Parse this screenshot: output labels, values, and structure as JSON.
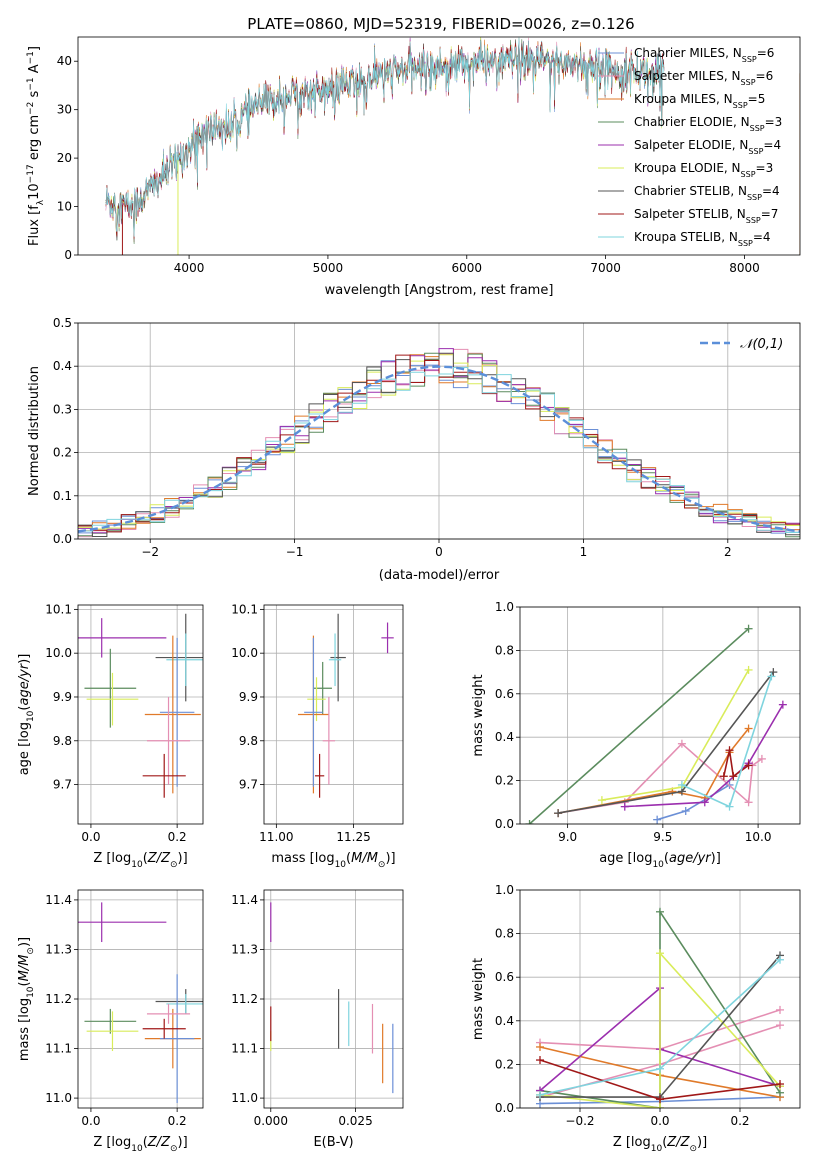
{
  "title": "PLATE=0860, MJD=52319, FIBERID=0026, z=0.126",
  "colors": {
    "Chabrier MILES": "#6b8fd6",
    "Salpeter MILES": "#e48fb3",
    "Kroupa MILES": "#e07a2a",
    "Chabrier ELODIE": "#5b8c5e",
    "Salpeter ELODIE": "#9b2fae",
    "Kroupa ELODIE": "#d9ec5a",
    "Chabrier STELIB": "#555555",
    "Salpeter STELIB": "#a01818",
    "Kroupa STELIB": "#7fd4de",
    "gaussian": "#5b8fd9",
    "grid": "#b0b0b0"
  },
  "chart_data": [
    {
      "id": "spectrum",
      "type": "line",
      "xlabel": "wavelength [Angstrom, rest frame]",
      "ylabel": "Flux [f_λ10^-17 erg cm^-2 s^-1 A^-1]",
      "xlim": [
        3200,
        8400
      ],
      "ylim": [
        0,
        45
      ],
      "xticks": [
        4000,
        5000,
        6000,
        7000,
        8000
      ],
      "yticks": [
        0,
        10,
        20,
        30,
        40
      ],
      "grid": false,
      "legend_position": "top-right",
      "legend": [
        {
          "model": "Chabrier MILES",
          "label": "Chabrier MILES, N",
          "sub": "SSP",
          "tail": "=6"
        },
        {
          "model": "Salpeter MILES",
          "label": "Salpeter MILES, N",
          "sub": "SSP",
          "tail": "=6"
        },
        {
          "model": "Kroupa MILES",
          "label": "Kroupa MILES, N",
          "sub": "SSP",
          "tail": "=5"
        },
        {
          "model": "Chabrier ELODIE",
          "label": "Chabrier ELODIE, N",
          "sub": "SSP",
          "tail": "=3"
        },
        {
          "model": "Salpeter ELODIE",
          "label": "Salpeter ELODIE, N",
          "sub": "SSP",
          "tail": "=4"
        },
        {
          "model": "Kroupa ELODIE",
          "label": "Kroupa ELODIE, N",
          "sub": "SSP",
          "tail": "=3"
        },
        {
          "model": "Chabrier STELIB",
          "label": "Chabrier STELIB, N",
          "sub": "SSP",
          "tail": "=4"
        },
        {
          "model": "Salpeter STELIB",
          "label": "Salpeter STELIB, N",
          "sub": "SSP",
          "tail": "=7"
        },
        {
          "model": "Kroupa STELIB",
          "label": "Kroupa STELIB, N",
          "sub": "SSP",
          "tail": "=4"
        }
      ],
      "continuum": [
        [
          3400,
          11
        ],
        [
          3500,
          10.5
        ],
        [
          3600,
          10
        ],
        [
          3700,
          13
        ],
        [
          3800,
          16
        ],
        [
          3900,
          19
        ],
        [
          4000,
          22
        ],
        [
          4100,
          25
        ],
        [
          4200,
          26.5
        ],
        [
          4300,
          26
        ],
        [
          4400,
          29
        ],
        [
          4500,
          31
        ],
        [
          4600,
          32
        ],
        [
          4700,
          33
        ],
        [
          4800,
          33.5
        ],
        [
          4900,
          33.5
        ],
        [
          5000,
          34
        ],
        [
          5100,
          35
        ],
        [
          5200,
          35.5
        ],
        [
          5300,
          36.5
        ],
        [
          5400,
          37.5
        ],
        [
          5600,
          38.5
        ],
        [
          5800,
          39
        ],
        [
          6000,
          39.5
        ],
        [
          6200,
          40
        ],
        [
          6400,
          40
        ],
        [
          6600,
          40
        ],
        [
          6800,
          39.5
        ],
        [
          7000,
          38.5
        ],
        [
          7200,
          38
        ],
        [
          7400,
          37.5
        ]
      ],
      "range": [
        3400,
        7420
      ],
      "cutoffs": [
        {
          "model": "Salpeter STELIB",
          "x0": 3200,
          "x1": 3520
        },
        {
          "model": "Kroupa ELODIE",
          "x0": 3200,
          "x1": 3920
        },
        {
          "model": "Kroupa ELODIE",
          "x0": 6800,
          "x1": 8400
        },
        {
          "model": "Kroupa MILES",
          "x0": 7410,
          "x1": 8400
        }
      ]
    },
    {
      "id": "residuals",
      "type": "histogram",
      "xlabel": "(data-model)/error",
      "ylabel": "Normed distribution",
      "xlim": [
        -2.5,
        2.5
      ],
      "ylim": [
        0,
        0.5
      ],
      "xticks": [
        -2,
        -1,
        0,
        1,
        2
      ],
      "yticks": [
        0.0,
        0.1,
        0.2,
        0.3,
        0.4,
        0.5
      ],
      "grid": true,
      "legend_position": "top-right",
      "gaussian_label": "𝒩(0,1)",
      "bins": 50,
      "jitter": 0.045
    },
    {
      "id": "age_vs_Z",
      "type": "errorbar",
      "xlabel": "Z [log10(Z/Z⊙)]",
      "ylabel": "age [log10(age/yr)]",
      "xlim": [
        -0.03,
        0.26
      ],
      "ylim": [
        9.61,
        10.11
      ],
      "xticks": [
        0.0,
        0.2
      ],
      "yticks": [
        9.7,
        9.8,
        9.9,
        10.0,
        10.1
      ],
      "grid": true,
      "points": [
        {
          "model": "Salpeter ELODIE",
          "x": 0.025,
          "y": 10.035,
          "xerr": 0.15,
          "yerr": 0.045
        },
        {
          "model": "Chabrier STELIB",
          "x": 0.22,
          "y": 9.99,
          "xerr": 0.07,
          "yerr": 0.1
        },
        {
          "model": "Kroupa STELIB",
          "x": 0.22,
          "y": 9.985,
          "xerr": 0.045,
          "yerr": 0.06
        },
        {
          "model": "Chabrier ELODIE",
          "x": 0.045,
          "y": 9.92,
          "xerr": 0.06,
          "yerr": 0.09
        },
        {
          "model": "Kroupa ELODIE",
          "x": 0.05,
          "y": 9.895,
          "xerr": 0.06,
          "yerr": 0.06
        },
        {
          "model": "Kroupa MILES",
          "x": 0.19,
          "y": 9.86,
          "xerr": 0.065,
          "yerr": 0.18
        },
        {
          "model": "Chabrier MILES",
          "x": 0.2,
          "y": 9.865,
          "xerr": 0.04,
          "yerr": 0.17
        },
        {
          "model": "Salpeter MILES",
          "x": 0.18,
          "y": 9.8,
          "xerr": 0.05,
          "yerr": 0.1
        },
        {
          "model": "Salpeter STELIB",
          "x": 0.17,
          "y": 9.72,
          "xerr": 0.05,
          "yerr": 0.05
        }
      ]
    },
    {
      "id": "age_vs_mass",
      "type": "errorbar",
      "xlabel": "mass [log10(M/M⊙)]",
      "ylabel": "",
      "xlim": [
        10.96,
        11.41
      ],
      "ylim": [
        9.61,
        10.11
      ],
      "xticks": [
        11.0,
        11.25
      ],
      "yticks": [
        9.7,
        9.8,
        9.9,
        10.0,
        10.1
      ],
      "grid": true,
      "points": [
        {
          "model": "Salpeter ELODIE",
          "x": 11.36,
          "y": 10.035,
          "xerr": 0.02,
          "yerr": 0.035
        },
        {
          "model": "Chabrier STELIB",
          "x": 11.2,
          "y": 9.99,
          "xerr": 0.025,
          "yerr": 0.1
        },
        {
          "model": "Kroupa STELIB",
          "x": 11.19,
          "y": 9.985,
          "xerr": 0.02,
          "yerr": 0.06
        },
        {
          "model": "Chabrier ELODIE",
          "x": 11.15,
          "y": 9.92,
          "xerr": 0.03,
          "yerr": 0.06
        },
        {
          "model": "Kroupa ELODIE",
          "x": 11.13,
          "y": 9.895,
          "xerr": 0.03,
          "yerr": 0.05
        },
        {
          "model": "Kroupa MILES",
          "x": 11.12,
          "y": 9.86,
          "xerr": 0.05,
          "yerr": 0.18
        },
        {
          "model": "Chabrier MILES",
          "x": 11.12,
          "y": 9.865,
          "xerr": 0.03,
          "yerr": 0.17
        },
        {
          "model": "Salpeter MILES",
          "x": 11.17,
          "y": 9.8,
          "xerr": 0.02,
          "yerr": 0.1
        },
        {
          "model": "Salpeter STELIB",
          "x": 11.14,
          "y": 9.72,
          "xerr": 0.015,
          "yerr": 0.05
        }
      ]
    },
    {
      "id": "weight_vs_age",
      "type": "line",
      "xlabel": "age [log10(age/yr)]",
      "ylabel": "mass weight",
      "xlim": [
        8.75,
        10.22
      ],
      "ylim": [
        0,
        1.0
      ],
      "xticks": [
        9.0,
        9.5,
        10.0
      ],
      "yticks": [
        0.0,
        0.2,
        0.4,
        0.6,
        0.8,
        1.0
      ],
      "grid": true,
      "series": [
        {
          "model": "Chabrier MILES",
          "x": [
            9.47,
            9.62,
            9.85
          ],
          "y": [
            0.02,
            0.06,
            0.18
          ]
        },
        {
          "model": "Salpeter MILES",
          "x": [
            8.95,
            9.3,
            9.6,
            9.95,
            9.97,
            10.02
          ],
          "y": [
            0.05,
            0.1,
            0.37,
            0.1,
            0.27,
            0.3
          ]
        },
        {
          "model": "Kroupa MILES",
          "x": [
            8.95,
            9.55,
            9.72,
            9.85,
            9.95
          ],
          "y": [
            0.05,
            0.15,
            0.12,
            0.33,
            0.44
          ]
        },
        {
          "model": "Chabrier ELODIE",
          "x": [
            8.8,
            9.95
          ],
          "y": [
            0.0,
            0.9
          ]
        },
        {
          "model": "Salpeter ELODIE",
          "x": [
            9.3,
            9.72,
            9.95,
            10.13
          ],
          "y": [
            0.08,
            0.1,
            0.28,
            0.55
          ]
        },
        {
          "model": "Kroupa ELODIE",
          "x": [
            9.18,
            9.6,
            9.95
          ],
          "y": [
            0.11,
            0.17,
            0.71
          ]
        },
        {
          "model": "Chabrier STELIB",
          "x": [
            8.95,
            9.6,
            10.08
          ],
          "y": [
            0.05,
            0.15,
            0.7
          ]
        },
        {
          "model": "Salpeter STELIB",
          "x": [
            9.82,
            9.85,
            9.87,
            9.95
          ],
          "y": [
            0.22,
            0.34,
            0.22,
            0.27
          ]
        },
        {
          "model": "Kroupa STELIB",
          "x": [
            9.6,
            9.85,
            10.07
          ],
          "y": [
            0.18,
            0.08,
            0.68
          ]
        }
      ]
    },
    {
      "id": "mass_vs_Z",
      "type": "errorbar",
      "xlabel": "Z [log10(Z/Z⊙)]",
      "ylabel": "mass [log10(M/M⊙)]",
      "xlim": [
        -0.03,
        0.26
      ],
      "ylim": [
        10.98,
        11.42
      ],
      "xticks": [
        0.0,
        0.2
      ],
      "yticks": [
        11.0,
        11.1,
        11.2,
        11.3,
        11.4
      ],
      "grid": true,
      "points": [
        {
          "model": "Salpeter ELODIE",
          "x": 0.025,
          "y": 11.355,
          "xerr": 0.15,
          "yerr": 0.04
        },
        {
          "model": "Chabrier STELIB",
          "x": 0.22,
          "y": 11.195,
          "xerr": 0.07,
          "yerr": 0.025
        },
        {
          "model": "Kroupa STELIB",
          "x": 0.22,
          "y": 11.19,
          "xerr": 0.045,
          "yerr": 0.02
        },
        {
          "model": "Chabrier ELODIE",
          "x": 0.045,
          "y": 11.155,
          "xerr": 0.06,
          "yerr": 0.025
        },
        {
          "model": "Kroupa ELODIE",
          "x": 0.05,
          "y": 11.135,
          "xerr": 0.06,
          "yerr": 0.04
        },
        {
          "model": "Kroupa MILES",
          "x": 0.19,
          "y": 11.12,
          "xerr": 0.065,
          "yerr": 0.06
        },
        {
          "model": "Chabrier MILES",
          "x": 0.2,
          "y": 11.12,
          "xerr": 0.04,
          "yerr": 0.13
        },
        {
          "model": "Salpeter MILES",
          "x": 0.18,
          "y": 11.17,
          "xerr": 0.05,
          "yerr": 0.02
        },
        {
          "model": "Salpeter STELIB",
          "x": 0.17,
          "y": 11.14,
          "xerr": 0.05,
          "yerr": 0.02
        }
      ]
    },
    {
      "id": "mass_vs_ebv",
      "type": "errorbar",
      "xlabel": "E(B-V)",
      "ylabel": "",
      "xlim": [
        -0.002,
        0.039
      ],
      "ylim": [
        10.98,
        11.42
      ],
      "xticks": [
        0.0,
        0.025
      ],
      "xticklabels": [
        "0.000",
        "0.025"
      ],
      "yticks": [
        11.0,
        11.1,
        11.2,
        11.3,
        11.4
      ],
      "grid": true,
      "points": [
        {
          "model": "Salpeter ELODIE",
          "x": 0.0,
          "y": 11.355,
          "xerr": 0.0,
          "yerr": 0.04
        },
        {
          "model": "Kroupa ELODIE",
          "x": 0.0,
          "y": 11.115,
          "xerr": 0.0,
          "yerr": 0.02
        },
        {
          "model": "Salpeter STELIB",
          "x": 0.0,
          "y": 11.15,
          "xerr": 0.0,
          "yerr": 0.035
        },
        {
          "model": "Chabrier STELIB",
          "x": 0.02,
          "y": 11.16,
          "xerr": 0.0,
          "yerr": 0.06
        },
        {
          "model": "Kroupa STELIB",
          "x": 0.023,
          "y": 11.15,
          "xerr": 0.0,
          "yerr": 0.045
        },
        {
          "model": "Salpeter MILES",
          "x": 0.03,
          "y": 11.14,
          "xerr": 0.0,
          "yerr": 0.05
        },
        {
          "model": "Kroupa MILES",
          "x": 0.033,
          "y": 11.09,
          "xerr": 0.0,
          "yerr": 0.06
        },
        {
          "model": "Chabrier MILES",
          "x": 0.036,
          "y": 11.08,
          "xerr": 0.0,
          "yerr": 0.07
        }
      ]
    },
    {
      "id": "weight_vs_Z",
      "type": "line",
      "xlabel": "Z [log10(Z/Z⊙)]",
      "ylabel": "mass weight",
      "xlim": [
        -0.35,
        0.35
      ],
      "ylim": [
        0,
        1.0
      ],
      "xticks": [
        -0.2,
        0.0,
        0.2
      ],
      "yticks": [
        0.0,
        0.2,
        0.4,
        0.6,
        0.8,
        1.0
      ],
      "grid": true,
      "series": [
        {
          "model": "Chabrier MILES",
          "x": [
            -0.3,
            0.0,
            0.3
          ],
          "y": [
            0.02,
            0.03,
            0.05
          ]
        },
        {
          "model": "Salpeter MILES",
          "x": [
            -0.3,
            0.0,
            0.3
          ],
          "y": [
            0.3,
            0.27,
            0.45
          ]
        },
        {
          "model": "Salpeter MILES",
          "x": [
            -0.3,
            0.0,
            0.3
          ],
          "y": [
            0.05,
            0.2,
            0.38
          ]
        },
        {
          "model": "Kroupa MILES",
          "x": [
            -0.3,
            0.0,
            0.3
          ],
          "y": [
            0.28,
            0.15,
            0.05
          ]
        },
        {
          "model": "Chabrier ELODIE",
          "x": [
            -0.3,
            0.0,
            0.0,
            0.3
          ],
          "y": [
            0.08,
            0.0,
            0.9,
            0.07
          ]
        },
        {
          "model": "Salpeter ELODIE",
          "x": [
            -0.3,
            0.0,
            0.0,
            0.3
          ],
          "y": [
            0.08,
            0.55,
            0.27,
            0.1
          ]
        },
        {
          "model": "Kroupa ELODIE",
          "x": [
            -0.3,
            0.0,
            0.0,
            0.3
          ],
          "y": [
            0.06,
            0.0,
            0.71,
            0.1
          ]
        },
        {
          "model": "Chabrier STELIB",
          "x": [
            -0.3,
            0.0,
            0.3
          ],
          "y": [
            0.05,
            0.05,
            0.7
          ]
        },
        {
          "model": "Salpeter STELIB",
          "x": [
            -0.3,
            0.0,
            0.3
          ],
          "y": [
            0.22,
            0.04,
            0.11
          ]
        },
        {
          "model": "Kroupa STELIB",
          "x": [
            -0.3,
            0.0,
            0.3
          ],
          "y": [
            0.06,
            0.18,
            0.68
          ]
        }
      ]
    }
  ]
}
